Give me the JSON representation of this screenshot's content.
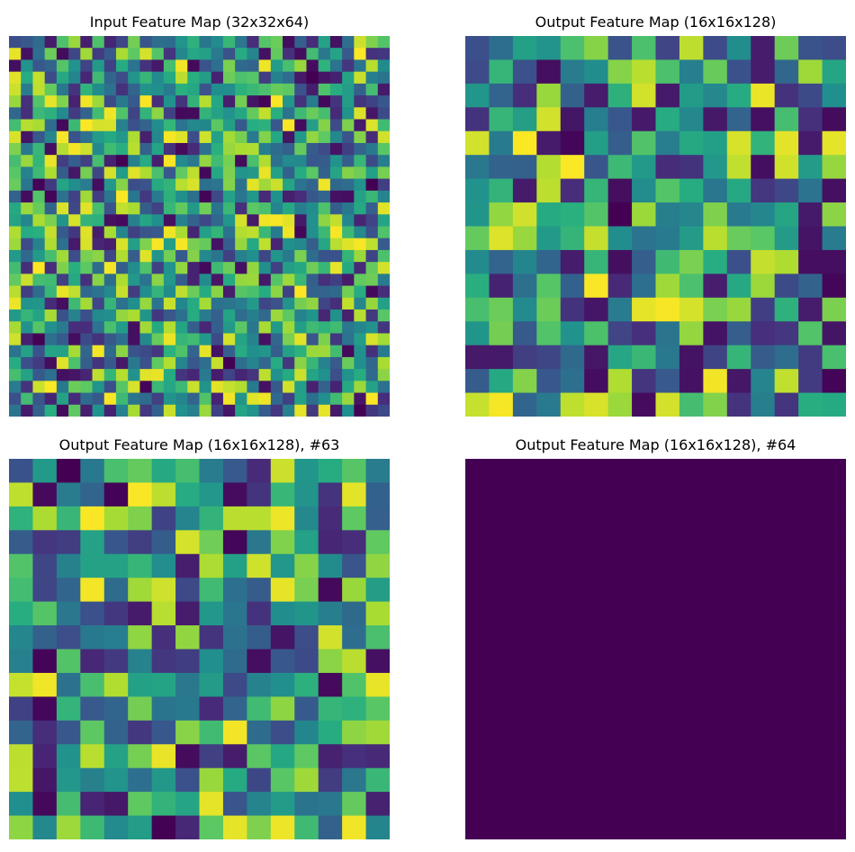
{
  "chart_data": [
    {
      "type": "heatmap",
      "title": "Input Feature Map (32x32x64)",
      "grid_size": 32,
      "colormap": "viridis",
      "value_range": [
        0,
        1
      ],
      "axes": "off",
      "pattern": "random",
      "seed": 11
    },
    {
      "type": "heatmap",
      "title": "Output Feature Map (16x16x128)",
      "grid_size": 16,
      "colormap": "viridis",
      "value_range": [
        0,
        1
      ],
      "axes": "off",
      "pattern": "random",
      "seed": 23
    },
    {
      "type": "heatmap",
      "title": "Output Feature Map (16x16x128), #63",
      "grid_size": 16,
      "colormap": "viridis",
      "value_range": [
        0,
        1
      ],
      "axes": "off",
      "pattern": "random",
      "seed": 47
    },
    {
      "type": "heatmap",
      "title": "Output Feature Map (16x16x128), #64",
      "grid_size": 16,
      "colormap": "viridis",
      "value_range": [
        0,
        1
      ],
      "axes": "off",
      "pattern": "constant",
      "constant_value": 0
    }
  ],
  "colors": {
    "viridis_low": "#440154",
    "viridis_mid": "#21918c",
    "viridis_high": "#fde725"
  }
}
